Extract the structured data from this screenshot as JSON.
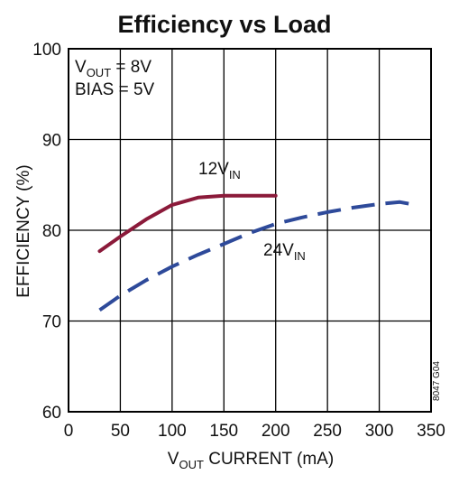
{
  "chart_data": {
    "type": "line",
    "title": "Efficiency vs Load",
    "xlabel": {
      "main": "V",
      "sub": "OUT",
      "rest": " CURRENT (mA)"
    },
    "ylabel": "EFFICIENCY (%)",
    "xlim": [
      0,
      350
    ],
    "ylim": [
      60,
      100
    ],
    "xticks": [
      "0",
      "50",
      "100",
      "150",
      "200",
      "250",
      "300",
      "350"
    ],
    "yticks": [
      "60",
      "70",
      "80",
      "90",
      "100"
    ],
    "grid": true,
    "annotations": [
      {
        "main": "V",
        "sub": "OUT",
        "rest": " = 8V"
      },
      {
        "main": "BIAS = 5V",
        "sub": "",
        "rest": ""
      }
    ],
    "figure_code": "8047 G04",
    "series": [
      {
        "label": {
          "main": "12V",
          "sub": "IN"
        },
        "color": "#8b1a3a",
        "dash": "solid",
        "x": [
          30,
          50,
          75,
          100,
          125,
          150,
          175,
          200
        ],
        "y": [
          77.7,
          79.3,
          81.2,
          82.8,
          83.6,
          83.8,
          83.8,
          83.8
        ]
      },
      {
        "label": {
          "main": "24V",
          "sub": "IN"
        },
        "color": "#2e4a9a",
        "dash": "dashed",
        "x": [
          30,
          50,
          75,
          100,
          125,
          150,
          175,
          200,
          225,
          250,
          275,
          300,
          320,
          330
        ],
        "y": [
          71.2,
          72.8,
          74.5,
          76.0,
          77.3,
          78.5,
          79.7,
          80.7,
          81.4,
          82.0,
          82.5,
          82.9,
          83.1,
          82.9
        ]
      }
    ]
  }
}
